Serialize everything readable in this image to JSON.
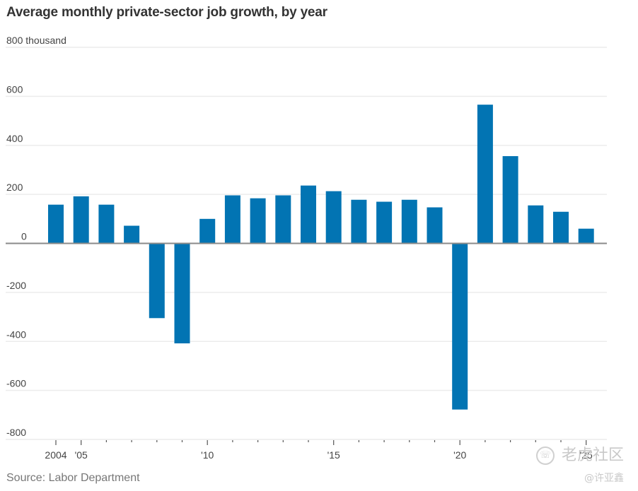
{
  "chart_data": {
    "type": "bar",
    "title": "Average monthly private-sector job growth, by year",
    "xlabel": "",
    "ylabel": "",
    "y_unit_label": "800 thousand",
    "ylim": [
      -800,
      800
    ],
    "yticks": [
      800,
      600,
      400,
      200,
      0,
      -200,
      -400,
      -600,
      -800
    ],
    "ytick_labels": [
      "800 thousand",
      "600",
      "400",
      "200",
      "0",
      "-200",
      "-400",
      "-600",
      "-800"
    ],
    "grid": true,
    "categories": [
      "2004",
      "2005",
      "2006",
      "2007",
      "2008",
      "2009",
      "2010",
      "2011",
      "2012",
      "2013",
      "2014",
      "2015",
      "2016",
      "2017",
      "2018",
      "2019",
      "2020",
      "2021",
      "2022",
      "2023",
      "2024",
      "2025"
    ],
    "values": [
      158,
      192,
      158,
      72,
      -305,
      -408,
      100,
      196,
      184,
      196,
      236,
      213,
      178,
      170,
      178,
      147,
      -678,
      566,
      356,
      155,
      129,
      60
    ],
    "xtick_labels": [
      {
        "year": "2004",
        "label": "2004"
      },
      {
        "year": "2005",
        "label": "'05"
      },
      {
        "year": "2010",
        "label": "'10"
      },
      {
        "year": "2015",
        "label": "'15"
      },
      {
        "year": "2020",
        "label": "'20"
      },
      {
        "year": "2025",
        "label": "'25"
      }
    ],
    "bar_color": "#0274b3",
    "source": "Source: Labor Department"
  },
  "watermark": {
    "line1": "老虎社区",
    "line2": "@许亚鑫"
  }
}
